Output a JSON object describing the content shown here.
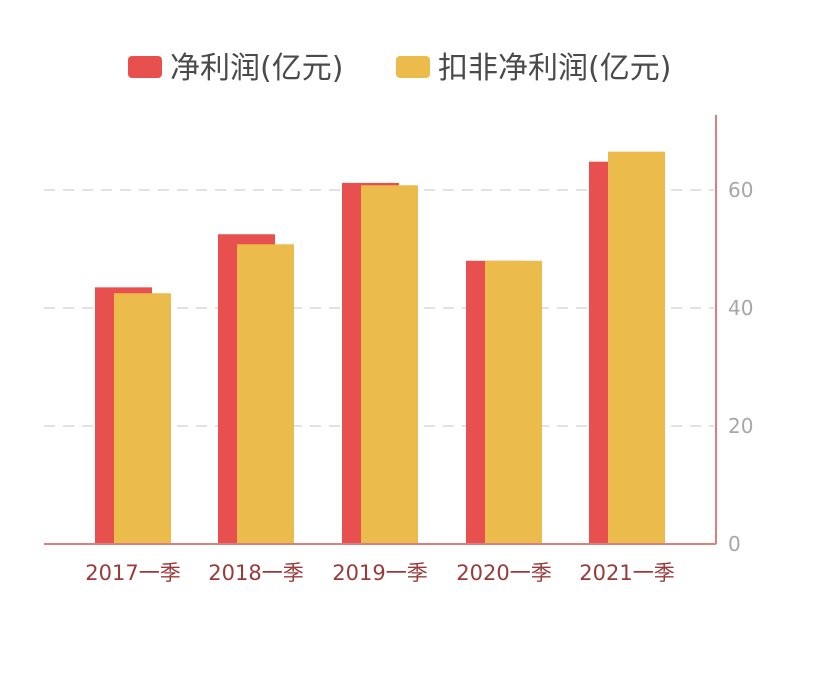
{
  "chart_data": {
    "type": "bar",
    "title": "",
    "xlabel": "",
    "ylabel": "",
    "categories": [
      "2017一季",
      "2018一季",
      "2019一季",
      "2020一季",
      "2021一季"
    ],
    "series": [
      {
        "name": "净利润(亿元)",
        "color": "#e84f4f",
        "values": [
          43.5,
          52.5,
          61.2,
          48.0,
          64.8
        ]
      },
      {
        "name": "扣非净利润(亿元)",
        "color": "#ebbb4c",
        "values": [
          42.5,
          50.8,
          60.8,
          48.0,
          66.5
        ]
      }
    ],
    "yaxis": {
      "position": "right",
      "ticks": [
        0,
        20,
        40,
        60
      ],
      "ylim": [
        0,
        73
      ]
    },
    "grid": true,
    "legend": "top-center"
  },
  "colors": {
    "axis": "#d9827d",
    "grid": "#e2e2e2"
  }
}
